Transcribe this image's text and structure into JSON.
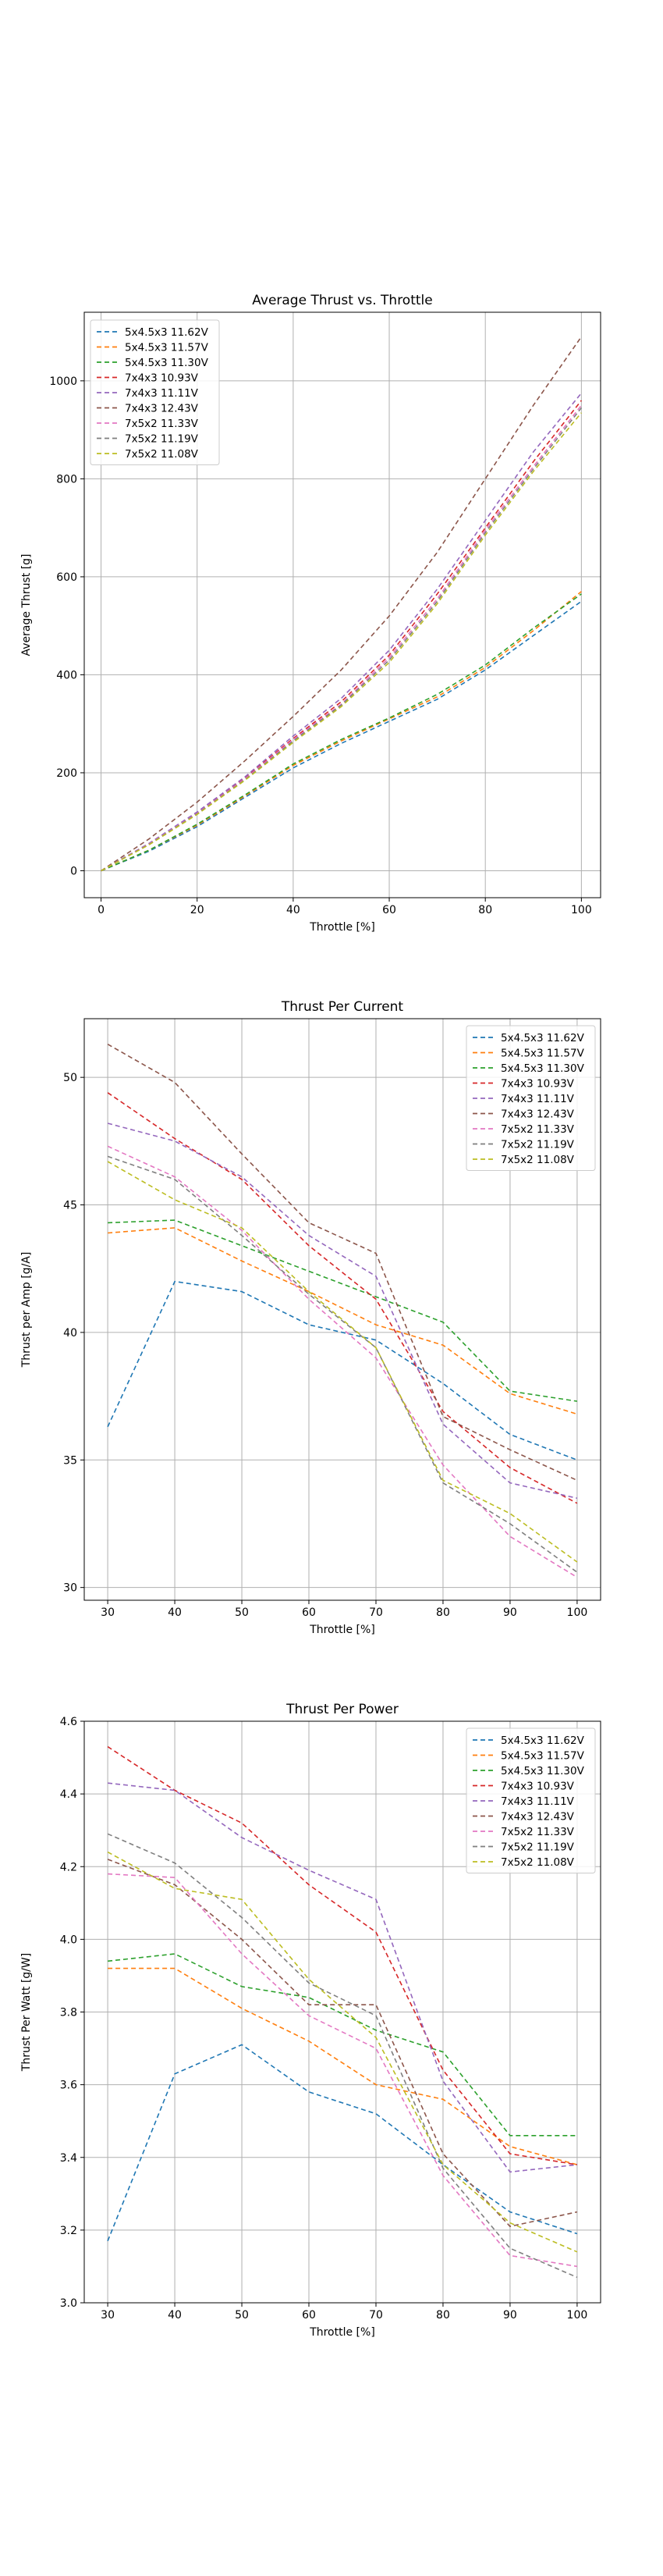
{
  "chart_data": [
    {
      "type": "line",
      "title": "Average Thrust vs. Throttle",
      "xlabel": "Throttle [%]",
      "ylabel": "Average Thrust [g]",
      "xlim": [
        -3.5,
        104
      ],
      "ylim": [
        -55,
        1140
      ],
      "xticks": [
        0,
        20,
        40,
        60,
        80,
        100
      ],
      "yticks": [
        0,
        200,
        400,
        600,
        800,
        1000
      ],
      "grid": true,
      "legend_position": "top-left",
      "x": [
        0,
        10,
        20,
        30,
        40,
        50,
        60,
        70,
        80,
        90,
        100
      ],
      "series": [
        {
          "name": "5x4.5x3 11.62V",
          "color": "#1f77b4",
          "values": [
            0,
            40,
            90,
            150,
            210,
            260,
            305,
            350,
            410,
            480,
            550
          ]
        },
        {
          "name": "5x4.5x3 11.57V",
          "color": "#ff7f0e",
          "values": [
            0,
            42,
            93,
            153,
            215,
            265,
            310,
            355,
            415,
            490,
            570
          ]
        },
        {
          "name": "5x4.5x3 11.30V",
          "color": "#2ca02c",
          "values": [
            0,
            42,
            95,
            155,
            218,
            268,
            312,
            360,
            420,
            495,
            565
          ]
        },
        {
          "name": "7x4x3 10.93V",
          "color": "#d62728",
          "values": [
            0,
            55,
            118,
            190,
            270,
            345,
            440,
            565,
            700,
            835,
            960
          ]
        },
        {
          "name": "7x4x3 11.11V",
          "color": "#9467bd",
          "values": [
            0,
            56,
            120,
            192,
            275,
            352,
            450,
            575,
            715,
            855,
            975
          ]
        },
        {
          "name": "7x4x3 12.43V",
          "color": "#8c564b",
          "values": [
            0,
            65,
            140,
            225,
            315,
            410,
            520,
            650,
            800,
            950,
            1090
          ]
        },
        {
          "name": "7x5x2 11.33V",
          "color": "#e377c2",
          "values": [
            0,
            55,
            117,
            188,
            268,
            340,
            435,
            555,
            695,
            825,
            950
          ]
        },
        {
          "name": "7x5x2 11.19V",
          "color": "#7f7f7f",
          "values": [
            0,
            54,
            116,
            186,
            265,
            338,
            430,
            550,
            690,
            820,
            945
          ]
        },
        {
          "name": "7x5x2 11.08V",
          "color": "#bcbd22",
          "values": [
            0,
            53,
            115,
            185,
            262,
            335,
            425,
            545,
            685,
            815,
            935
          ]
        }
      ]
    },
    {
      "type": "line",
      "title": "Thrust Per Current",
      "xlabel": "Throttle [%]",
      "ylabel": "Thrust per Amp [g/A]",
      "xlim": [
        26.5,
        103.5
      ],
      "ylim": [
        29.5,
        52.3
      ],
      "xticks": [
        30,
        40,
        50,
        60,
        70,
        80,
        90,
        100
      ],
      "yticks": [
        30,
        35,
        40,
        45,
        50
      ],
      "grid": true,
      "legend_position": "top-right",
      "x": [
        30,
        40,
        50,
        60,
        70,
        80,
        90,
        100
      ],
      "series": [
        {
          "name": "5x4.5x3 11.62V",
          "color": "#1f77b4",
          "values": [
            36.3,
            42.0,
            41.6,
            40.3,
            39.7,
            38.0,
            36.0,
            35.0
          ]
        },
        {
          "name": "5x4.5x3 11.57V",
          "color": "#ff7f0e",
          "values": [
            43.9,
            44.1,
            42.8,
            41.6,
            40.3,
            39.5,
            37.6,
            36.8
          ]
        },
        {
          "name": "5x4.5x3 11.30V",
          "color": "#2ca02c",
          "values": [
            44.3,
            44.4,
            43.4,
            42.4,
            41.4,
            40.4,
            37.7,
            37.3
          ]
        },
        {
          "name": "7x4x3 10.93V",
          "color": "#d62728",
          "values": [
            49.4,
            47.6,
            46.0,
            43.4,
            41.3,
            36.9,
            34.7,
            33.3
          ]
        },
        {
          "name": "7x4x3 11.11V",
          "color": "#9467bd",
          "values": [
            48.2,
            47.5,
            46.1,
            43.8,
            42.2,
            36.4,
            34.1,
            33.5
          ]
        },
        {
          "name": "7x4x3 12.43V",
          "color": "#8c564b",
          "values": [
            51.3,
            49.8,
            47.0,
            44.3,
            43.1,
            36.7,
            35.4,
            34.2
          ]
        },
        {
          "name": "7x5x2 11.33V",
          "color": "#e377c2",
          "values": [
            47.3,
            46.1,
            44.0,
            41.3,
            39.0,
            34.8,
            32.0,
            30.4
          ]
        },
        {
          "name": "7x5x2 11.19V",
          "color": "#7f7f7f",
          "values": [
            46.9,
            46.0,
            43.8,
            41.5,
            39.4,
            34.1,
            32.5,
            30.6
          ]
        },
        {
          "name": "7x5x2 11.08V",
          "color": "#bcbd22",
          "values": [
            46.7,
            45.2,
            44.1,
            41.6,
            39.4,
            34.2,
            32.9,
            31.0
          ]
        }
      ]
    },
    {
      "type": "line",
      "title": "Thrust Per Power",
      "xlabel": "Throttle [%]",
      "ylabel": "Thrust Per Watt [g/W]",
      "xlim": [
        26.5,
        103.5
      ],
      "ylim": [
        3.0,
        4.6
      ],
      "xticks": [
        30,
        40,
        50,
        60,
        70,
        80,
        90,
        100
      ],
      "yticks": [
        3.0,
        3.2,
        3.4,
        3.6,
        3.8,
        4.0,
        4.2,
        4.4,
        4.6
      ],
      "grid": true,
      "legend_position": "top-right",
      "x": [
        30,
        40,
        50,
        60,
        70,
        80,
        90,
        100
      ],
      "series": [
        {
          "name": "5x4.5x3 11.62V",
          "color": "#1f77b4",
          "values": [
            3.17,
            3.63,
            3.71,
            3.58,
            3.52,
            3.38,
            3.25,
            3.19
          ]
        },
        {
          "name": "5x4.5x3 11.57V",
          "color": "#ff7f0e",
          "values": [
            3.92,
            3.92,
            3.81,
            3.72,
            3.6,
            3.56,
            3.43,
            3.38
          ]
        },
        {
          "name": "5x4.5x3 11.30V",
          "color": "#2ca02c",
          "values": [
            3.94,
            3.96,
            3.87,
            3.84,
            3.75,
            3.69,
            3.46,
            3.46
          ]
        },
        {
          "name": "7x4x3 10.93V",
          "color": "#d62728",
          "values": [
            4.53,
            4.41,
            4.32,
            4.15,
            4.02,
            3.64,
            3.41,
            3.38
          ]
        },
        {
          "name": "7x4x3 11.11V",
          "color": "#9467bd",
          "values": [
            4.43,
            4.41,
            4.28,
            4.19,
            4.11,
            3.61,
            3.36,
            3.38
          ]
        },
        {
          "name": "7x4x3 12.43V",
          "color": "#8c564b",
          "values": [
            4.22,
            4.15,
            4.0,
            3.82,
            3.82,
            3.41,
            3.21,
            3.25
          ]
        },
        {
          "name": "7x5x2 11.33V",
          "color": "#e377c2",
          "values": [
            4.18,
            4.17,
            3.96,
            3.79,
            3.7,
            3.35,
            3.13,
            3.1
          ]
        },
        {
          "name": "7x5x2 11.19V",
          "color": "#7f7f7f",
          "values": [
            4.29,
            4.21,
            4.06,
            3.88,
            3.79,
            3.37,
            3.15,
            3.07
          ]
        },
        {
          "name": "7x5x2 11.08V",
          "color": "#bcbd22",
          "values": [
            4.24,
            4.14,
            4.11,
            3.89,
            3.73,
            3.38,
            3.22,
            3.14
          ]
        }
      ]
    }
  ]
}
